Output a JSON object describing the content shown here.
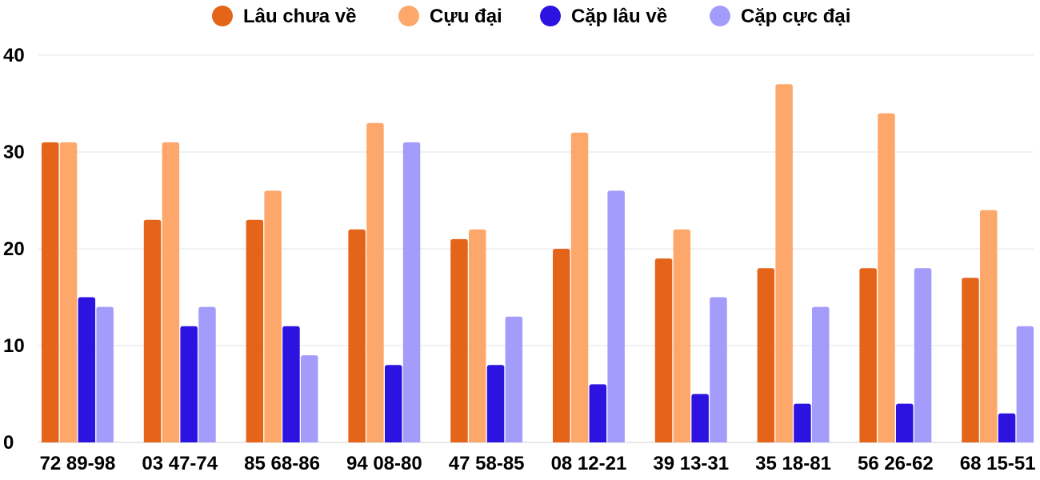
{
  "chart_data": {
    "type": "bar",
    "title": "",
    "xlabel": "",
    "ylabel": "",
    "ylim": [
      0,
      40
    ],
    "yticks": [
      0,
      10,
      20,
      30,
      40
    ],
    "grid": true,
    "legend_position": "top-center",
    "categories": [
      "72 89-98",
      "03 47-74",
      "85 68-86",
      "94 08-80",
      "47 58-85",
      "08 12-21",
      "39 13-31",
      "35 18-81",
      "56 26-62",
      "68 15-51"
    ],
    "series": [
      {
        "name": "Lâu chưa về",
        "color": "#e4641a",
        "values": [
          31,
          23,
          23,
          22,
          21,
          20,
          19,
          18,
          18,
          17
        ]
      },
      {
        "name": "Cựu đại",
        "color": "#fda86a",
        "values": [
          31,
          31,
          26,
          33,
          22,
          32,
          22,
          37,
          34,
          24
        ]
      },
      {
        "name": "Cặp lâu về",
        "color": "#2c13e0",
        "values": [
          15,
          12,
          12,
          8,
          8,
          6,
          5,
          4,
          4,
          3
        ]
      },
      {
        "name": "Cặp cực đại",
        "color": "#a39cfb",
        "values": [
          14,
          14,
          9,
          31,
          13,
          26,
          15,
          14,
          18,
          12
        ]
      }
    ]
  }
}
